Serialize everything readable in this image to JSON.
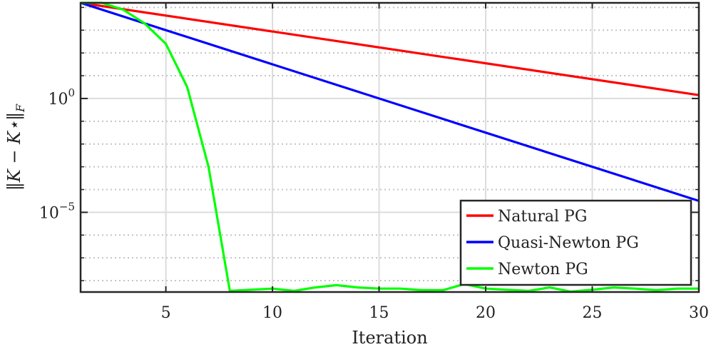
{
  "chart_data": {
    "type": "line",
    "title": "",
    "xlabel": "Iteration",
    "ylabel": "‖K − K⋆‖F",
    "x_scale": "linear",
    "y_scale": "log",
    "xlim": [
      1,
      30
    ],
    "ylim_log10": [
      -8.5,
      4.2
    ],
    "grid": true,
    "legend_position": "bottom-right",
    "x_ticks": [
      5,
      10,
      15,
      20,
      25,
      30
    ],
    "y_ticks": [
      {
        "exp": 0,
        "label": "10",
        "sup": "0"
      },
      {
        "exp": -5,
        "label": "10",
        "sup": "−5"
      }
    ],
    "series": [
      {
        "name": "Natural PG",
        "color": "#ff0000",
        "x": [
          1,
          30
        ],
        "log10_y": [
          4.2,
          0.15
        ]
      },
      {
        "name": "Quasi-Newton PG",
        "color": "#0000ff",
        "x": [
          1,
          30
        ],
        "log10_y": [
          4.2,
          -4.5
        ]
      },
      {
        "name": "Newton PG",
        "color": "#00ff00",
        "x": [
          1,
          2,
          3,
          4,
          5,
          6,
          7,
          8,
          9,
          10,
          11,
          12,
          13,
          14,
          15,
          16,
          17,
          18,
          19,
          20,
          21,
          22,
          23,
          24,
          25,
          26,
          27,
          28,
          29,
          30
        ],
        "log10_y": [
          4.2,
          4.2,
          3.9,
          3.3,
          2.4,
          0.5,
          -3.0,
          -8.45,
          -8.4,
          -8.35,
          -8.45,
          -8.3,
          -8.2,
          -8.3,
          -8.35,
          -8.35,
          -8.42,
          -8.42,
          -8.15,
          -8.35,
          -8.4,
          -8.45,
          -8.3,
          -8.48,
          -8.4,
          -8.3,
          -8.35,
          -8.42,
          -8.35,
          -8.35
        ]
      }
    ]
  }
}
